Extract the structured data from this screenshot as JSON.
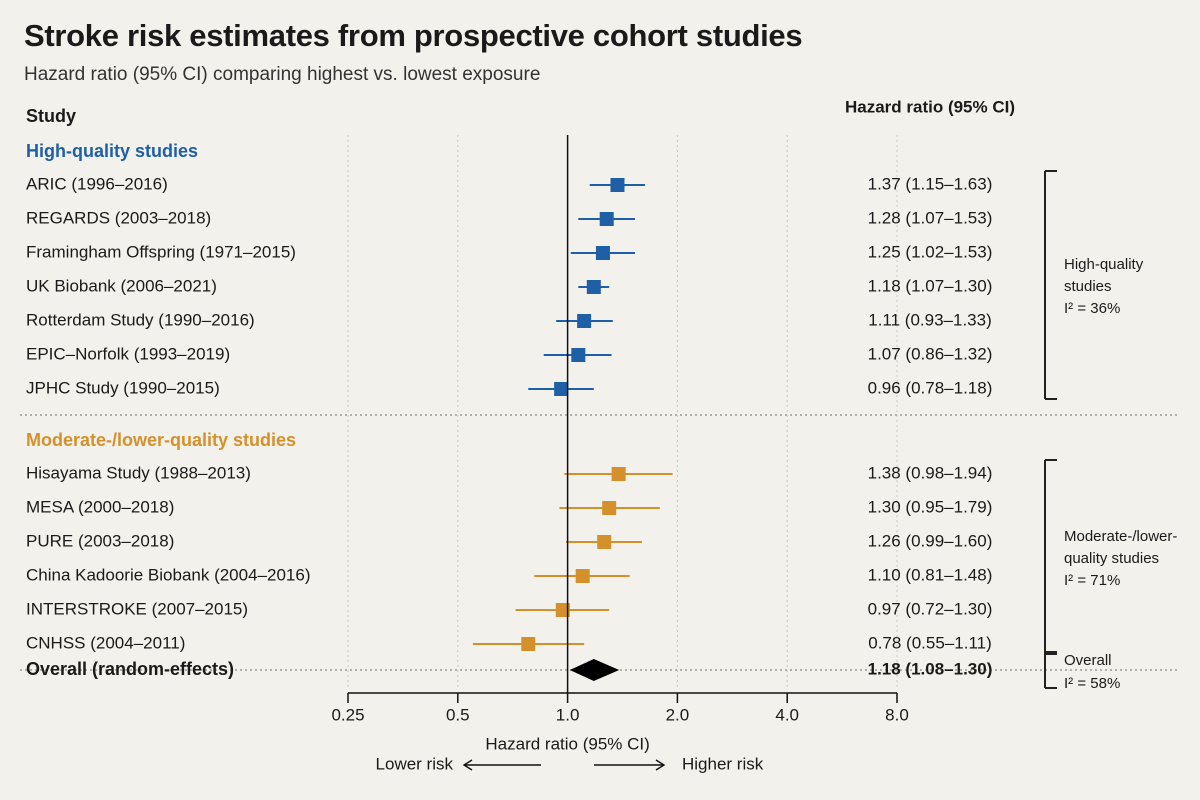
{
  "title": "Stroke risk estimates from prospective cohort studies",
  "subtitle": "Hazard ratio (95% CI) comparing highest vs. lowest exposure",
  "colors": {
    "high": "#1f5fa6",
    "moderate": "#d4912b",
    "overall": "#000000",
    "text": "#1a1a1a"
  },
  "chart_data": {
    "type": "forest",
    "study_header": "Study",
    "hr_header": "Hazard ratio (95% CI)",
    "xlabel": "Hazard ratio (95% CI)",
    "x_scale": "log",
    "xlim": [
      0.25,
      8.0
    ],
    "ticks": [
      0.25,
      0.5,
      1.0,
      2.0,
      4.0,
      8.0
    ],
    "tick_labels": [
      "0.25",
      "0.5",
      "1.0",
      "2.0",
      "4.0",
      "8.0"
    ],
    "reference_line": 1.0,
    "direction_labels": {
      "left": "Lower risk",
      "right": "Higher risk"
    },
    "groups": [
      {
        "label": "High-quality studies",
        "color_key": "high",
        "heterogeneity": {
          "label": [
            "High-quality",
            "studies"
          ],
          "i2": "I² = 36%"
        },
        "studies": [
          {
            "name": "ARIC (1996–2016)",
            "hr": 1.37,
            "lo": 1.15,
            "hi": 1.63,
            "ci_text": "1.37 (1.15–1.63)"
          },
          {
            "name": "REGARDS (2003–2018)",
            "hr": 1.28,
            "lo": 1.07,
            "hi": 1.53,
            "ci_text": "1.28 (1.07–1.53)"
          },
          {
            "name": "Framingham Offspring (1971–2015)",
            "hr": 1.25,
            "lo": 1.02,
            "hi": 1.53,
            "ci_text": "1.25 (1.02–1.53)"
          },
          {
            "name": "UK Biobank (2006–2021)",
            "hr": 1.18,
            "lo": 1.07,
            "hi": 1.3,
            "ci_text": "1.18 (1.07–1.30)"
          },
          {
            "name": "Rotterdam Study (1990–2016)",
            "hr": 1.11,
            "lo": 0.93,
            "hi": 1.33,
            "ci_text": "1.11 (0.93–1.33)"
          },
          {
            "name": "EPIC–Norfolk (1993–2019)",
            "hr": 1.07,
            "lo": 0.86,
            "hi": 1.32,
            "ci_text": "1.07 (0.86–1.32)"
          },
          {
            "name": "JPHC Study (1990–2015)",
            "hr": 0.96,
            "lo": 0.78,
            "hi": 1.18,
            "ci_text": "0.96 (0.78–1.18)"
          }
        ]
      },
      {
        "label": "Moderate-/lower-quality studies",
        "color_key": "moderate",
        "heterogeneity": {
          "label": [
            "Moderate-/lower-",
            "quality studies"
          ],
          "i2": "I² = 71%"
        },
        "studies": [
          {
            "name": "Hisayama Study (1988–2013)",
            "hr": 1.38,
            "lo": 0.98,
            "hi": 1.94,
            "ci_text": "1.38 (0.98–1.94)"
          },
          {
            "name": "MESA (2000–2018)",
            "hr": 1.3,
            "lo": 0.95,
            "hi": 1.79,
            "ci_text": "1.30 (0.95–1.79)"
          },
          {
            "name": "PURE (2003–2018)",
            "hr": 1.26,
            "lo": 0.99,
            "hi": 1.6,
            "ci_text": "1.26 (0.99–1.60)"
          },
          {
            "name": "China Kadoorie Biobank (2004–2016)",
            "hr": 1.1,
            "lo": 0.81,
            "hi": 1.48,
            "ci_text": "1.10 (0.81–1.48)"
          },
          {
            "name": "INTERSTROKE (2007–2015)",
            "hr": 0.97,
            "lo": 0.72,
            "hi": 1.3,
            "ci_text": "0.97 (0.72–1.30)"
          },
          {
            "name": "CNHSS (2004–2011)",
            "hr": 0.78,
            "lo": 0.55,
            "hi": 1.11,
            "ci_text": "0.78 (0.55–1.11)"
          }
        ]
      }
    ],
    "overall": {
      "name": "Overall (random-effects)",
      "hr": 1.18,
      "lo": 1.08,
      "hi": 1.3,
      "ci_text": "1.18 (1.08–1.30)",
      "heterogeneity": {
        "label": [
          "Overall"
        ],
        "i2": "I² = 58%"
      }
    }
  }
}
